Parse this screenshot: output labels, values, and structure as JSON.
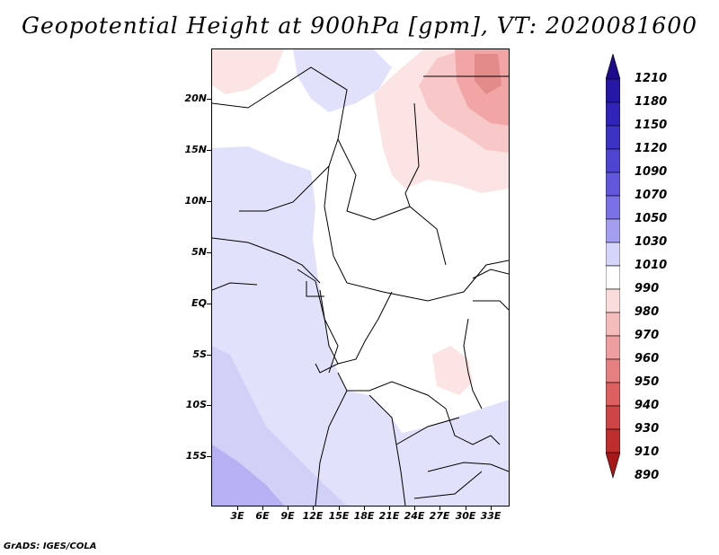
{
  "title": "Geopotential Height at 900hPa [gpm], VT: 2020081600",
  "footer": "GrADS: IGES/COLA",
  "y_axis_labels": [
    "20N",
    "15N",
    "10N",
    "5N",
    "EQ",
    "5S",
    "10S",
    "15S"
  ],
  "x_axis_labels": [
    "3E",
    "6E",
    "9E",
    "12E",
    "15E",
    "18E",
    "21E",
    "24E",
    "27E",
    "30E",
    "33E"
  ],
  "colorbar": {
    "levels": [
      "1210",
      "1180",
      "1150",
      "1120",
      "1090",
      "1070",
      "1050",
      "1030",
      "1010",
      "990",
      "980",
      "970",
      "960",
      "950",
      "940",
      "930",
      "910",
      "890"
    ],
    "colors": [
      "#1e0a8c",
      "#2618a6",
      "#3024b8",
      "#3c33c4",
      "#4d45d1",
      "#6257dc",
      "#7a71e6",
      "#a39eef",
      "#d6d4fa",
      "#ffffff",
      "#fbdcdc",
      "#f5bcbc",
      "#ee9e9e",
      "#e67f7f",
      "#dd5f5f",
      "#cf4444",
      "#bf2e2e",
      "#a81818"
    ]
  },
  "colors": {
    "lavender_light": "#e1e1fb",
    "lavender_mid": "#d1d0f7",
    "lavender_dark": "#b5b1f2",
    "pink_light": "#fce4e4",
    "pink_mid": "#f8c8c8",
    "pink_dark": "#f1a5a5",
    "pink_darker": "#e38a8a",
    "borders": "#000000"
  }
}
